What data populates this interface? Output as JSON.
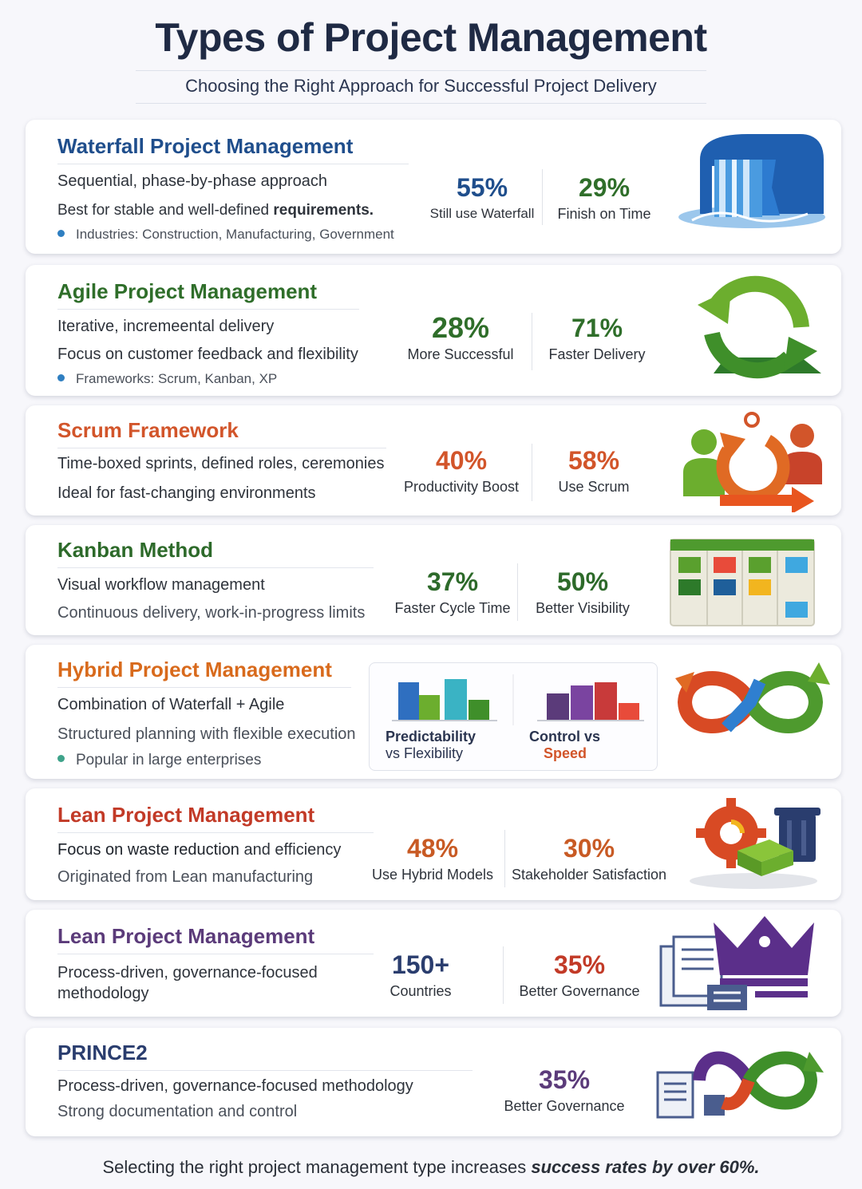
{
  "header": {
    "title": "Types of Project Management",
    "subtitle": "Choosing the Right Approach for Successful Project Delivery"
  },
  "colors": {
    "waterfall": "#1f4e8c",
    "agile": "#2f6e2a",
    "scrum": "#d2552a",
    "kanban": "#2d6a2a",
    "hybrid": "#d86a1c",
    "lean": "#c23a27",
    "lean2": "#5b3b7a",
    "prince2": "#2a3d6e"
  },
  "cards": {
    "waterfall": {
      "title": "Waterfall Project Management",
      "line1": "Sequential, phase-by-phase approach",
      "line2_pre": "Best for stable and well-defined ",
      "line2_bold": "requirements.",
      "note": "Industries: Construction, Manufacturing, Government",
      "stat1_value": "55%",
      "stat1_label": "Still use Waterfall",
      "stat2_value": "29%",
      "stat2_label": "Finish on Time",
      "icon": "waterfall-icon"
    },
    "agile": {
      "title": "Agile Project Management",
      "line1": "Iterative, incremeental delivery",
      "line2": "Focus on customer feedback and flexibility",
      "note": "Frameworks: Scrum, Kanban, XP",
      "stat1_value": "28%",
      "stat1_label": "More Successful",
      "stat2_value": "71%",
      "stat2_label": "Faster Delivery",
      "icon": "cycle-arrows-icon"
    },
    "scrum": {
      "title": "Scrum Framework",
      "line1": "Time-boxed sprints, defined roles, ceremonies",
      "line2": "Ideal for fast-changing environments",
      "stat1_value": "40%",
      "stat1_label": "Productivity Boost",
      "stat2_value": "58%",
      "stat2_label": "Use Scrum",
      "icon": "team-cycle-icon"
    },
    "kanban": {
      "title": "Kanban Method",
      "line1": "Visual workflow management",
      "line2": "Continuous delivery, work-in-progress limits",
      "stat1_value": "37%",
      "stat1_label": "Faster Cycle Time",
      "stat2_value": "50%",
      "stat2_label": "Better Visibility",
      "icon": "kanban-board-icon"
    },
    "hybrid": {
      "title": "Hybrid Project Management",
      "line1": "Combination of Waterfall  + Agile",
      "line2": "Structured planning with flexible execution",
      "note": "Popular in large enterprises",
      "chart1_label1": "Predictability",
      "chart1_label2": "vs Flexibility",
      "chart2_label1": "Control vs",
      "chart2_label2": "Speed",
      "icon": "infinity-arrows-icon"
    },
    "lean": {
      "title": "Lean Project Management",
      "line1_bold": "Focus on waste reduction",
      "line1_rest": " and efficiency",
      "line2": "Originated from Lean manufacturing",
      "stat1_value": "48%",
      "stat1_label": "Use Hybrid Models",
      "stat2_value": "30%",
      "stat2_label": "Stakeholder Satisfaction",
      "icon": "gear-trash-icon"
    },
    "lean2": {
      "title": "Lean Project Management",
      "line1": "Process-driven, governance-focused",
      "line2": "methodology",
      "stat1_value": "150+",
      "stat1_label": "Countries",
      "stat2_value": "35%",
      "stat2_label": "Better Governance",
      "icon": "crown-documents-icon"
    },
    "prince2": {
      "title": "PRINCE2",
      "line1": "Process-driven, governance-focused methodology",
      "line2": "Strong documentation and control",
      "stat1_value": "35%",
      "stat1_label": "Better Governance",
      "icon": "documents-cycle-icon"
    }
  },
  "footer": {
    "text_pre": "Selecting the right project management type increases ",
    "text_bold": "success rates by over 60%."
  }
}
